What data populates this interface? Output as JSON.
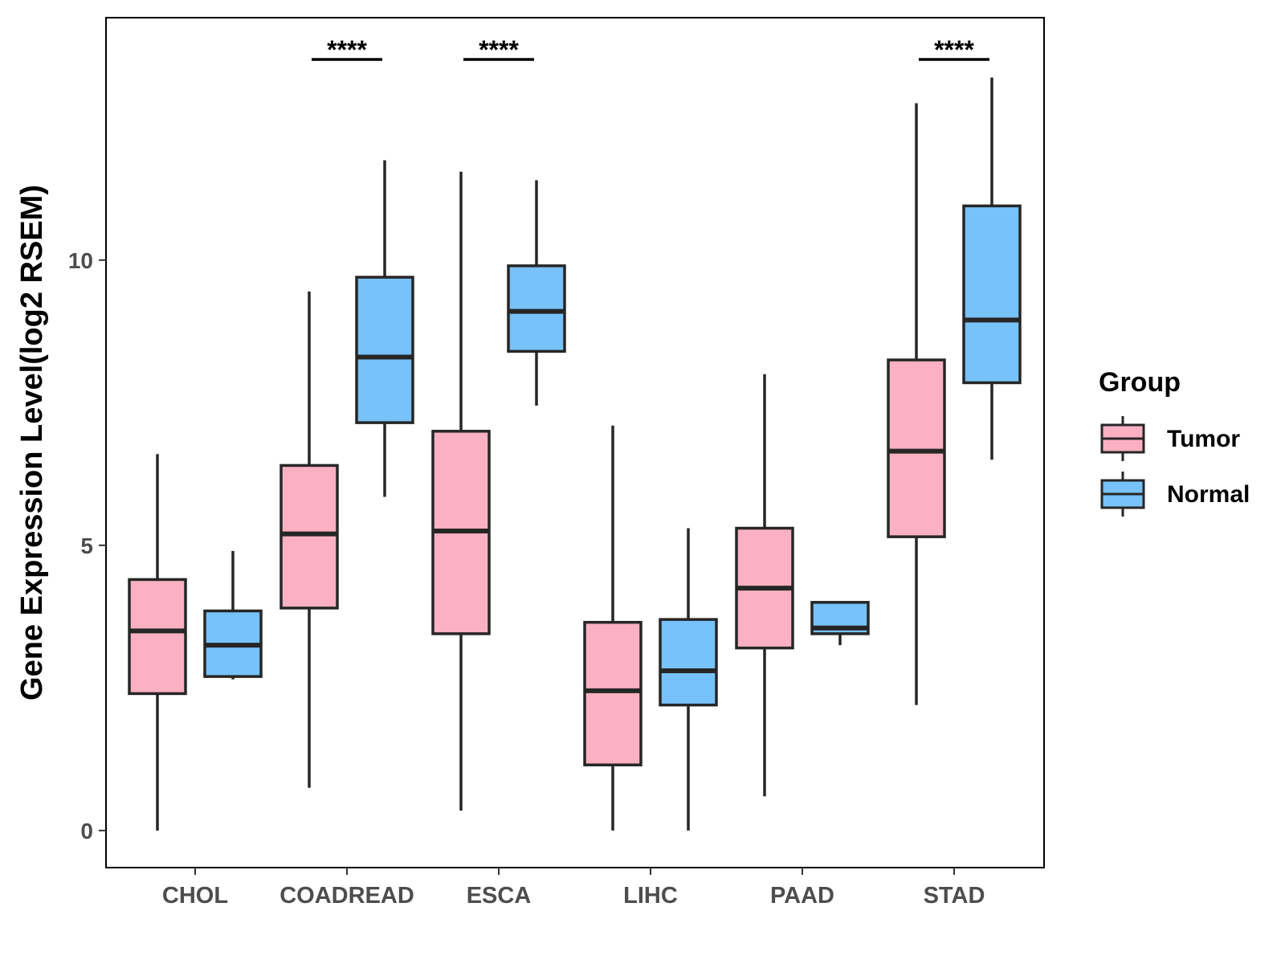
{
  "chart_data": {
    "type": "boxplot",
    "title": "",
    "xlabel": "",
    "ylabel": "Gene Expression Level(log2 RSEM)",
    "ylim": [
      -0.65,
      14.25
    ],
    "yticks": [
      0,
      5,
      10
    ],
    "grid": false,
    "legend_position": "right",
    "legend_title": "Group",
    "categories": [
      "CHOL",
      "COADREAD",
      "ESCA",
      "LIHC",
      "PAAD",
      "STAD"
    ],
    "series": [
      {
        "name": "Tumor",
        "color": "#FBB1C3",
        "boxes": [
          {
            "min": 0.0,
            "q1": 2.4,
            "median": 3.5,
            "q3": 4.4,
            "max": 6.6
          },
          {
            "min": 0.75,
            "q1": 3.9,
            "median": 5.2,
            "q3": 6.4,
            "max": 9.45
          },
          {
            "min": 0.35,
            "q1": 3.45,
            "median": 5.25,
            "q3": 7.0,
            "max": 11.55
          },
          {
            "min": 0.0,
            "q1": 1.15,
            "median": 2.45,
            "q3": 3.65,
            "max": 7.1
          },
          {
            "min": 0.6,
            "q1": 3.2,
            "median": 4.25,
            "q3": 5.3,
            "max": 8.0
          },
          {
            "min": 2.2,
            "q1": 5.15,
            "median": 6.65,
            "q3": 8.25,
            "max": 12.75
          }
        ]
      },
      {
        "name": "Normal",
        "color": "#77C2F8",
        "boxes": [
          {
            "min": 2.65,
            "q1": 2.7,
            "median": 3.25,
            "q3": 3.85,
            "max": 4.9
          },
          {
            "min": 5.85,
            "q1": 7.15,
            "median": 8.3,
            "q3": 9.7,
            "max": 11.75
          },
          {
            "min": 7.45,
            "q1": 8.4,
            "median": 9.1,
            "q3": 9.9,
            "max": 11.4
          },
          {
            "min": 0.0,
            "q1": 2.2,
            "median": 2.8,
            "q3": 3.7,
            "max": 5.3
          },
          {
            "min": 3.25,
            "q1": 3.45,
            "median": 3.55,
            "q3": 4.0,
            "max": 4.0
          },
          {
            "min": 6.5,
            "q1": 7.85,
            "median": 8.95,
            "q3": 10.95,
            "max": 13.2
          }
        ]
      }
    ],
    "annotations": [
      {
        "category": "COADREAD",
        "label": "****"
      },
      {
        "category": "ESCA",
        "label": "****"
      },
      {
        "category": "STAD",
        "label": "****"
      }
    ]
  }
}
